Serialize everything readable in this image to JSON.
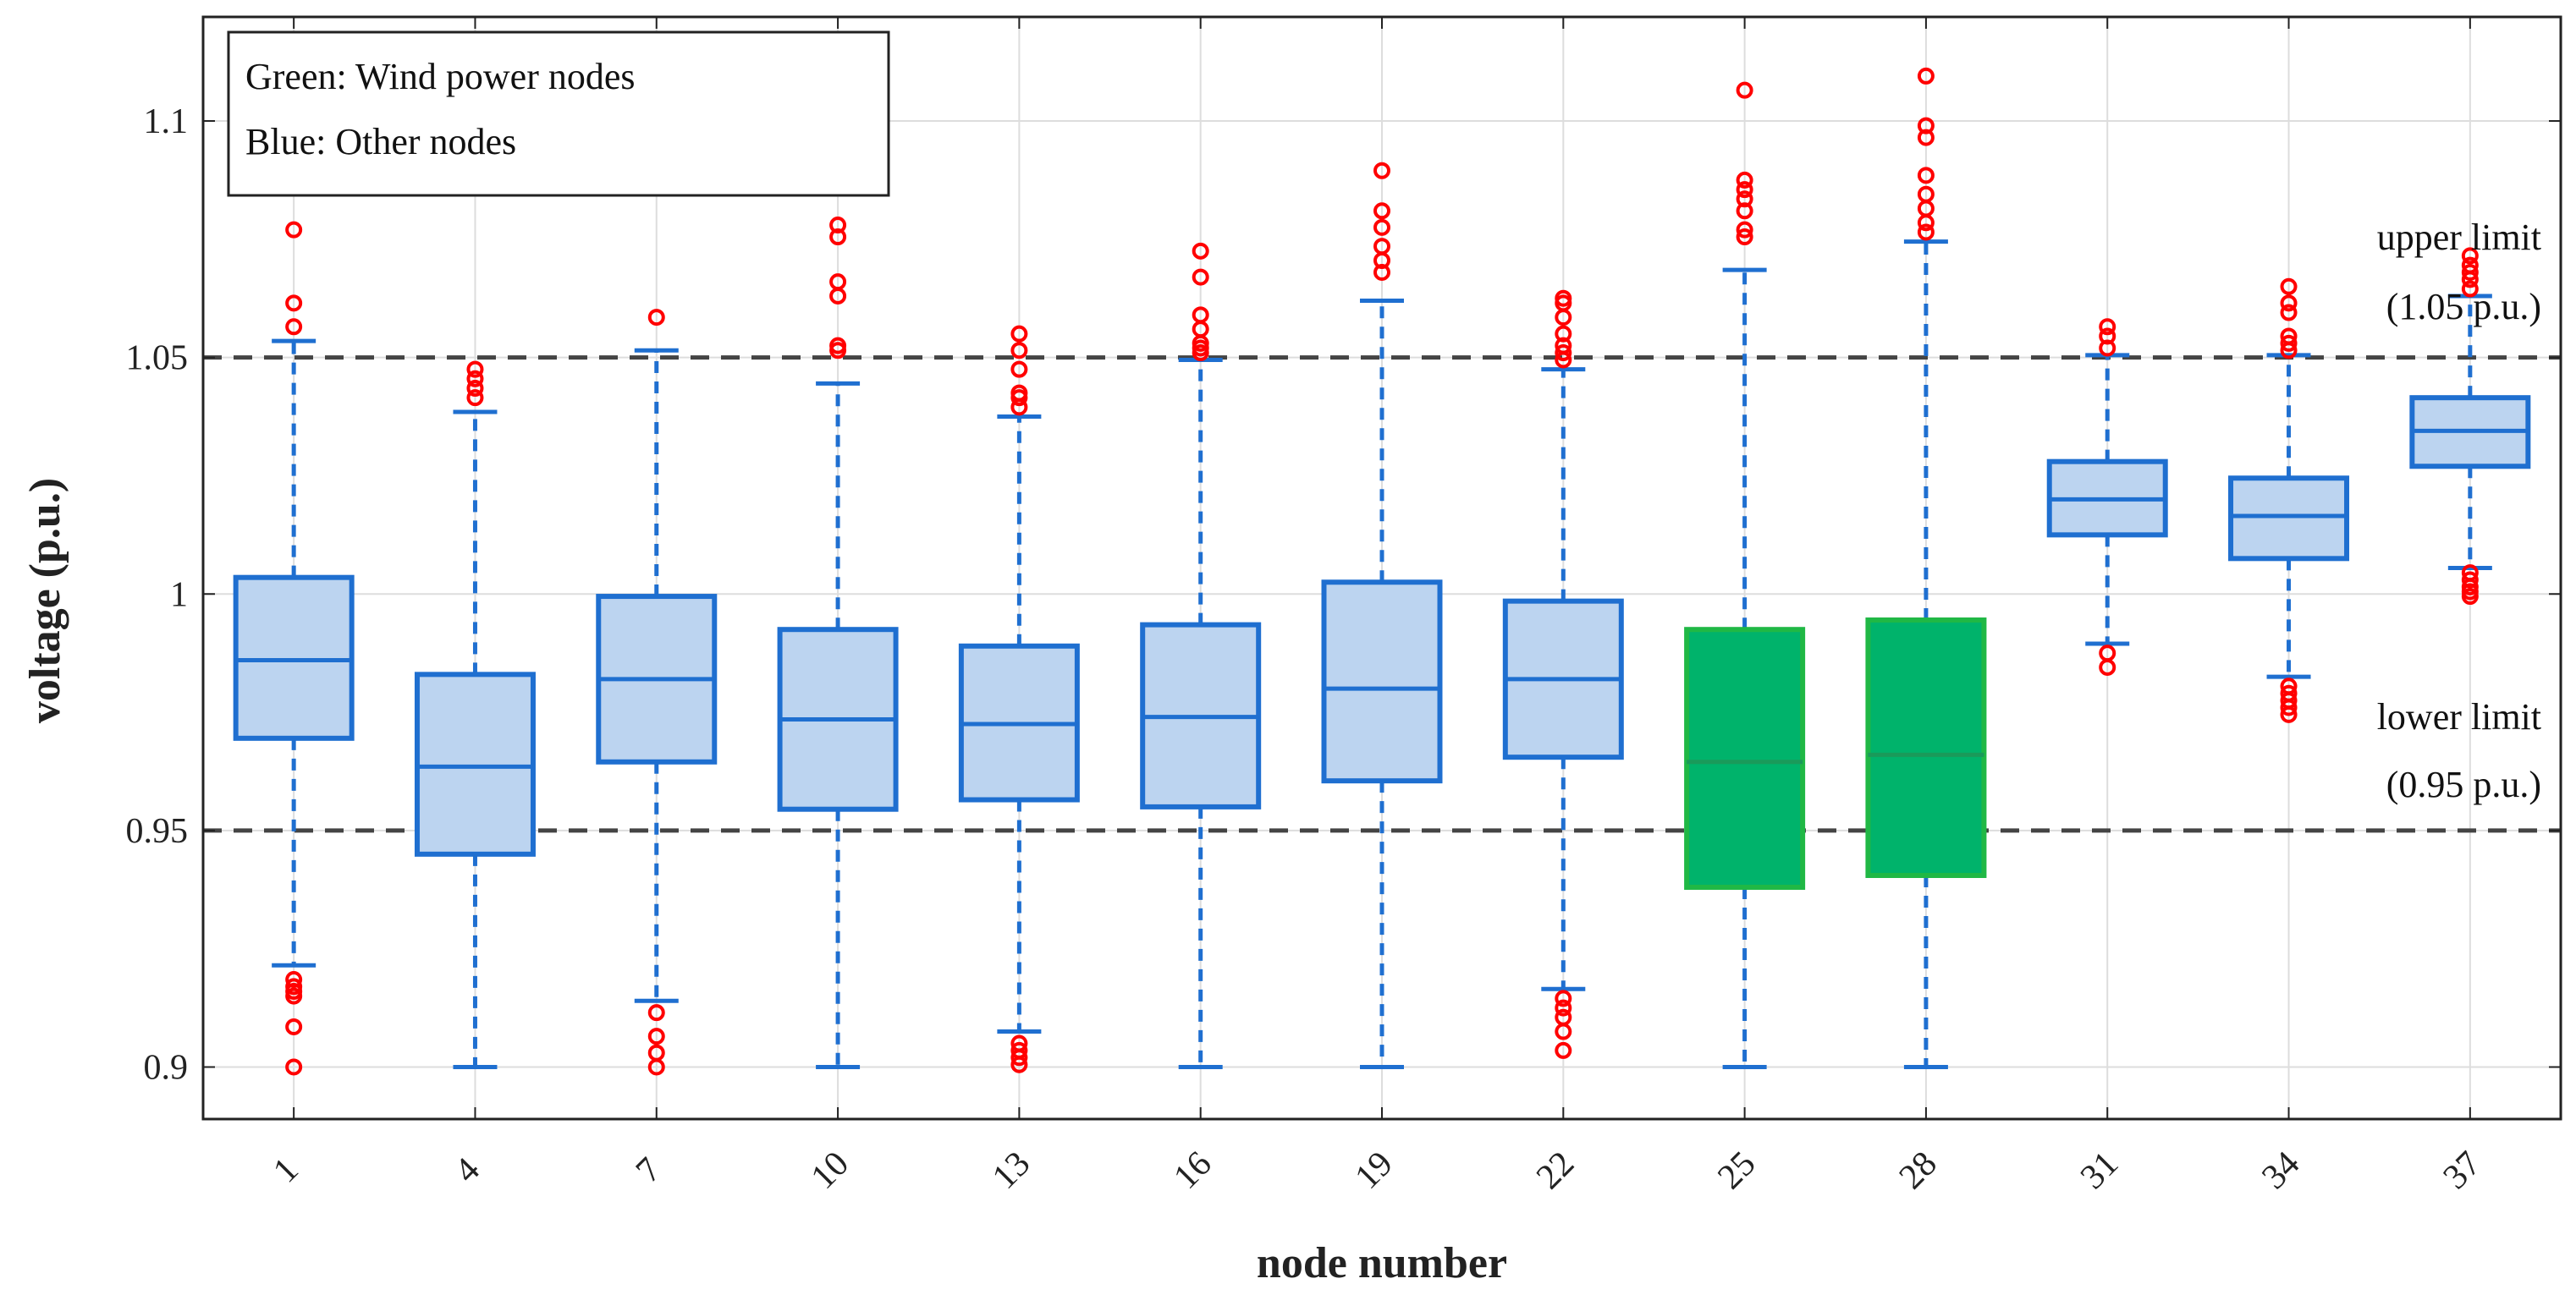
{
  "chart_data": {
    "type": "boxplot",
    "xlabel": "node number",
    "ylabel": "voltage (p.u.)",
    "ylim": [
      0.889,
      1.122
    ],
    "yticks": [
      0.9,
      0.95,
      1,
      1.05,
      1.1
    ],
    "ytick_labels": [
      "0.9",
      "0.95",
      "1",
      "1.05",
      "1.1"
    ],
    "grid": true,
    "legend": {
      "position": "top-left",
      "lines": [
        "Green: Wind power nodes",
        "Blue: Other nodes"
      ]
    },
    "reference_lines": [
      {
        "name": "upper",
        "value": 1.05,
        "label_line1": "upper limit",
        "label_line2": "(1.05 p.u.)"
      },
      {
        "name": "lower",
        "value": 0.95,
        "label_line1": "lower limit",
        "label_line2": "(0.95 p.u.)"
      }
    ],
    "colors": {
      "other_fill": "#bcd4f0",
      "other_edge": "#1f6fd0",
      "wind_fill": "#00b36b",
      "wind_edge": "#20b845",
      "whisker": "#1f6fd0",
      "outlier": "#ff0000",
      "reference": "#444444",
      "grid": "#dddddd"
    },
    "nodes": [
      {
        "node": "1",
        "group": "other",
        "q1": 0.9695,
        "median": 0.986,
        "q3": 1.0035,
        "whisker_low": 0.9215,
        "whisker_high": 1.0535,
        "outliers": [
          0.9185,
          0.917,
          0.916,
          0.915,
          0.9085,
          0.9,
          1.0565,
          1.0615,
          1.077
        ]
      },
      {
        "node": "4",
        "group": "other",
        "q1": 0.945,
        "median": 0.9635,
        "q3": 0.983,
        "whisker_low": 0.9,
        "whisker_high": 1.0385,
        "outliers": [
          1.0415,
          1.0435,
          1.0455,
          1.0475
        ]
      },
      {
        "node": "7",
        "group": "other",
        "q1": 0.9645,
        "median": 0.982,
        "q3": 0.9995,
        "whisker_low": 0.914,
        "whisker_high": 1.0515,
        "outliers": [
          0.9115,
          0.9065,
          0.903,
          0.9,
          1.0585
        ]
      },
      {
        "node": "10",
        "group": "other",
        "q1": 0.9545,
        "median": 0.9735,
        "q3": 0.9925,
        "whisker_low": 0.9,
        "whisker_high": 1.0445,
        "outliers": [
          1.0515,
          1.0525,
          1.063,
          1.066,
          1.0755,
          1.078
        ]
      },
      {
        "node": "13",
        "group": "other",
        "q1": 0.9565,
        "median": 0.9725,
        "q3": 0.989,
        "whisker_low": 0.9075,
        "whisker_high": 1.0375,
        "outliers": [
          0.905,
          0.9035,
          0.902,
          0.9005,
          1.0395,
          1.0415,
          1.0425,
          1.0475,
          1.0515,
          1.055
        ]
      },
      {
        "node": "16",
        "group": "other",
        "q1": 0.955,
        "median": 0.974,
        "q3": 0.9935,
        "whisker_low": 0.9,
        "whisker_high": 1.0495,
        "outliers": [
          1.051,
          1.052,
          1.053,
          1.056,
          1.059,
          1.067,
          1.0725
        ]
      },
      {
        "node": "19",
        "group": "other",
        "q1": 0.9605,
        "median": 0.98,
        "q3": 1.0025,
        "whisker_low": 0.9,
        "whisker_high": 1.062,
        "outliers": [
          1.068,
          1.0705,
          1.0735,
          1.0775,
          1.081,
          1.0895
        ]
      },
      {
        "node": "22",
        "group": "other",
        "q1": 0.9655,
        "median": 0.982,
        "q3": 0.9985,
        "whisker_low": 0.9165,
        "whisker_high": 1.0475,
        "outliers": [
          0.9145,
          0.9125,
          0.9105,
          0.9075,
          0.9035,
          1.0495,
          1.051,
          1.0525,
          1.055,
          1.0585,
          1.0615,
          1.0625
        ]
      },
      {
        "node": "25",
        "group": "wind",
        "q1": 0.938,
        "median": 0.9645,
        "q3": 0.9925,
        "whisker_low": 0.9,
        "whisker_high": 1.0685,
        "outliers": [
          1.0755,
          1.077,
          1.081,
          1.0835,
          1.0855,
          1.0875,
          1.1065
        ]
      },
      {
        "node": "28",
        "group": "wind",
        "q1": 0.9405,
        "median": 0.966,
        "q3": 0.9945,
        "whisker_low": 0.9,
        "whisker_high": 1.0745,
        "outliers": [
          1.0765,
          1.0785,
          1.0815,
          1.0845,
          1.0885,
          1.0965,
          1.099,
          1.1095
        ]
      },
      {
        "node": "31",
        "group": "other",
        "q1": 1.0125,
        "median": 1.02,
        "q3": 1.028,
        "whisker_low": 0.9895,
        "whisker_high": 1.0505,
        "outliers": [
          0.9875,
          0.9845,
          1.052,
          1.0545,
          1.0565
        ]
      },
      {
        "node": "34",
        "group": "other",
        "q1": 1.0075,
        "median": 1.0165,
        "q3": 1.0245,
        "whisker_low": 0.9825,
        "whisker_high": 1.0505,
        "outliers": [
          0.9805,
          0.979,
          0.9775,
          0.976,
          0.9745,
          1.0515,
          1.053,
          1.0545,
          1.0595,
          1.0615,
          1.065
        ]
      },
      {
        "node": "37",
        "group": "other",
        "q1": 1.027,
        "median": 1.0345,
        "q3": 1.0415,
        "whisker_low": 1.0055,
        "whisker_high": 1.063,
        "outliers": [
          1.0045,
          1.003,
          1.0015,
          1.0005,
          0.9995,
          1.0645,
          1.0665,
          1.068,
          1.0695,
          1.0715
        ]
      }
    ]
  }
}
